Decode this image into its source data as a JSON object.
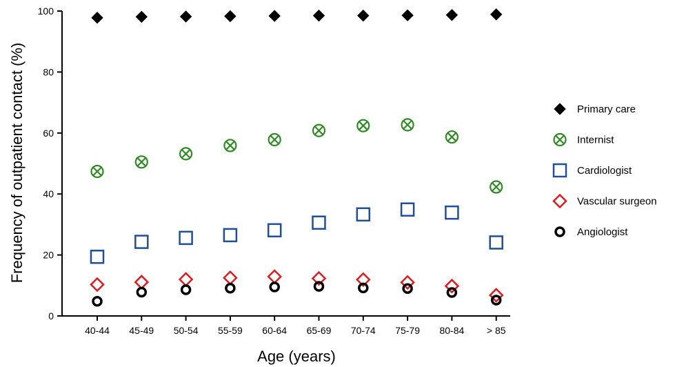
{
  "chart_data": {
    "type": "scatter",
    "title": "",
    "xlabel": "Age (years)",
    "ylabel": "Frequency of outpatient contact (%)",
    "categories": [
      "40-44",
      "45-49",
      "50-54",
      "55-59",
      "60-64",
      "65-69",
      "70-74",
      "75-79",
      "80-84",
      "> 85"
    ],
    "ylim": [
      0,
      100
    ],
    "yticks": [
      "0",
      "20",
      "40",
      "60",
      "80",
      "100"
    ],
    "grid": false,
    "legend_position": "right",
    "series": [
      {
        "name": "Primary care",
        "marker": "diamond-filled",
        "color": "#000000",
        "values": [
          97.8,
          98.1,
          98.2,
          98.3,
          98.4,
          98.5,
          98.5,
          98.6,
          98.7,
          98.9
        ]
      },
      {
        "name": "Internist",
        "marker": "circle-x",
        "color": "#2e8b22",
        "values": [
          47.4,
          50.5,
          53.2,
          55.9,
          57.8,
          60.8,
          62.4,
          62.7,
          58.7,
          42.3
        ]
      },
      {
        "name": "Cardiologist",
        "marker": "square-open",
        "color": "#1f4e9c",
        "values": [
          19.4,
          24.3,
          25.6,
          26.5,
          28.1,
          30.6,
          33.3,
          34.9,
          33.9,
          24.1
        ]
      },
      {
        "name": "Vascular surgeon",
        "marker": "diamond-open",
        "color": "#e3191c",
        "values": [
          10.3,
          11.1,
          12.0,
          12.5,
          12.9,
          12.3,
          11.9,
          11.0,
          9.8,
          6.8
        ]
      },
      {
        "name": "Angiologist",
        "marker": "circle-open",
        "color": "#000000",
        "values": [
          4.8,
          7.8,
          8.6,
          9.1,
          9.5,
          9.7,
          9.2,
          9.0,
          7.7,
          5.2
        ]
      }
    ]
  }
}
